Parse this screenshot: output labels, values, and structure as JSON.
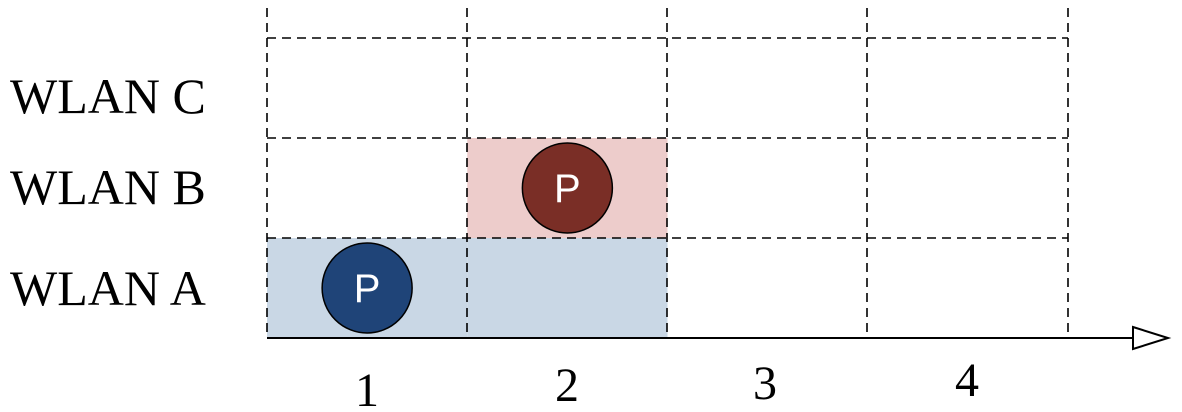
{
  "rows": [
    {
      "label": "WLAN C"
    },
    {
      "label": "WLAN B"
    },
    {
      "label": "WLAN A"
    }
  ],
  "columns": [
    "1",
    "2",
    "3",
    "4"
  ],
  "shaded_cells": [
    {
      "row": "WLAN A",
      "column": "1",
      "color": "#c9d7e5"
    },
    {
      "row": "WLAN A",
      "column": "2",
      "color": "#c9d7e5"
    },
    {
      "row": "WLAN B",
      "column": "2",
      "color": "#edcccb"
    }
  ],
  "markers": [
    {
      "row": "WLAN A",
      "column": "1",
      "label": "P",
      "color": "#1f4478"
    },
    {
      "row": "WLAN B",
      "column": "2",
      "label": "P",
      "color": "#7a2e26"
    }
  ]
}
